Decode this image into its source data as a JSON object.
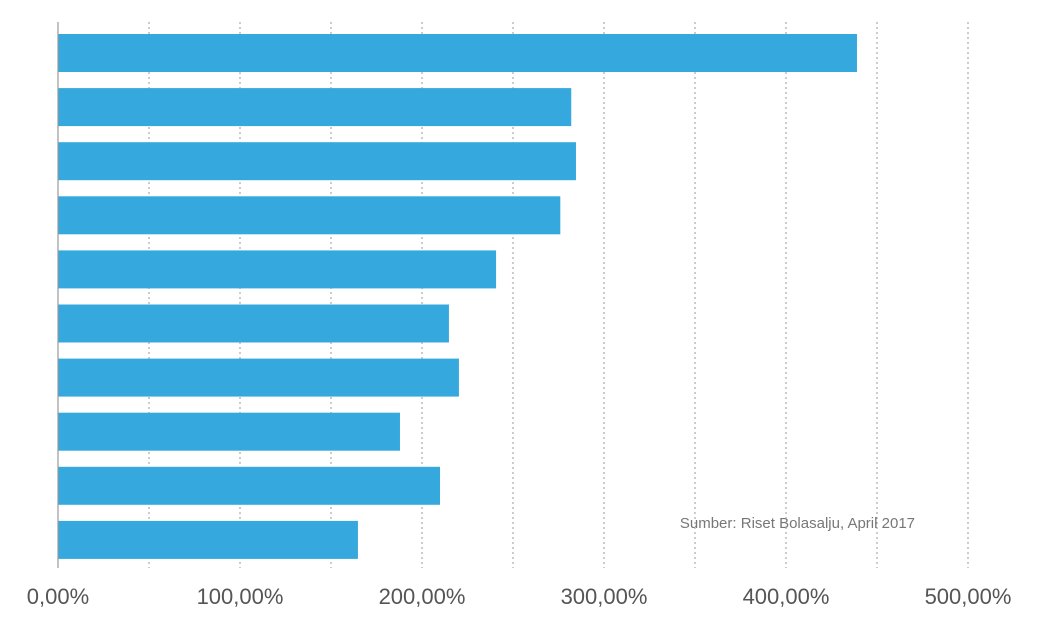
{
  "chart_data": {
    "type": "barh",
    "categories": [
      null,
      null,
      null,
      null,
      null,
      null,
      null,
      null,
      null,
      null
    ],
    "values": [
      439,
      282,
      284.6,
      276,
      240.7,
      214.8,
      220.3,
      187.9,
      209.9,
      164.8
    ],
    "color": "#35a9de",
    "xlim": [
      0,
      500
    ],
    "xticks": [
      {
        "value": 0,
        "label": "0,00%"
      },
      {
        "value": 100,
        "label": "100,00%"
      },
      {
        "value": 200,
        "label": "200,00%"
      },
      {
        "value": 300,
        "label": "300,00%"
      },
      {
        "value": 400,
        "label": "400,00%"
      },
      {
        "value": 500,
        "label": "500,00%"
      }
    ],
    "xgrid_minor": [
      50,
      150,
      250,
      350,
      450
    ],
    "grid": true,
    "annotation": "Sumber: Riset Bolasalju, April 2017"
  }
}
